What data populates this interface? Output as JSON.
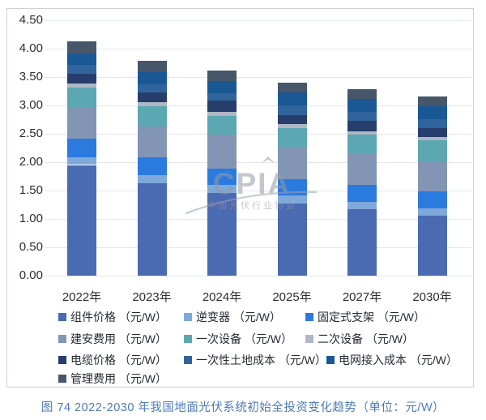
{
  "figure": {
    "caption": "图 74   2022-2030 年我国地面光伏系统初始全投资变化趋势（单位：元/W）",
    "watermark": {
      "logo_text": "CPIA",
      "org_name": "中国光伏行业协会"
    }
  },
  "chart_data": {
    "type": "bar",
    "stacked": true,
    "unit": "元/W",
    "grid": "horizontal",
    "legend_position": "bottom",
    "categories": [
      "2022年",
      "2023年",
      "2024年",
      "2025年",
      "2027年",
      "2030年"
    ],
    "y_axis": {
      "min": 0,
      "max": 4.5,
      "step": 0.5,
      "tick_labels": [
        "4.50",
        "4.00",
        "3.50",
        "3.00",
        "2.50",
        "2.00",
        "1.50",
        "1.00",
        "0.50",
        "0.00"
      ]
    },
    "series": [
      {
        "name": "组件价格",
        "legend_label": "组件价格 （元/W）",
        "color": "#4a6ab1",
        "values": [
          1.95,
          1.63,
          1.46,
          1.27,
          1.17,
          1.06
        ]
      },
      {
        "name": "逆变器",
        "legend_label": "逆变器 （元/W）",
        "color": "#7fa9da",
        "values": [
          0.13,
          0.14,
          0.14,
          0.14,
          0.13,
          0.12
        ]
      },
      {
        "name": "固定式支架",
        "legend_label": "固定式支架 （元/W）",
        "color": "#2b7ade",
        "values": [
          0.33,
          0.32,
          0.29,
          0.29,
          0.3,
          0.3
        ]
      },
      {
        "name": "建安费用",
        "legend_label": "建安费用 （元/W）",
        "color": "#8295b5",
        "values": [
          0.56,
          0.54,
          0.6,
          0.57,
          0.54,
          0.53
        ]
      },
      {
        "name": "一次设备",
        "legend_label": "一次设备 （元/W）",
        "color": "#5ba7b2",
        "values": [
          0.35,
          0.36,
          0.33,
          0.33,
          0.34,
          0.38
        ]
      },
      {
        "name": "二次设备",
        "legend_label": "二次设备 （元/W）",
        "color": "#b0b7c4",
        "values": [
          0.06,
          0.07,
          0.07,
          0.07,
          0.06,
          0.05
        ]
      },
      {
        "name": "电缆价格",
        "legend_label": "电缆价格 （元/W）",
        "color": "#273e6d",
        "values": [
          0.18,
          0.17,
          0.19,
          0.16,
          0.19,
          0.16
        ]
      },
      {
        "name": "一次性土地成本",
        "legend_label": "一次性土地成本 （元/W）",
        "color": "#31649c",
        "values": [
          0.15,
          0.14,
          0.14,
          0.17,
          0.16,
          0.16
        ]
      },
      {
        "name": "电网接入成本",
        "legend_label": "电网接入成本 （元/W）",
        "color": "#1a5795",
        "values": [
          0.21,
          0.21,
          0.21,
          0.23,
          0.22,
          0.22
        ]
      },
      {
        "name": "管理费用",
        "legend_label": "管理费用 （元/W）",
        "color": "#475769",
        "values": [
          0.21,
          0.21,
          0.19,
          0.17,
          0.18,
          0.18
        ]
      }
    ]
  }
}
